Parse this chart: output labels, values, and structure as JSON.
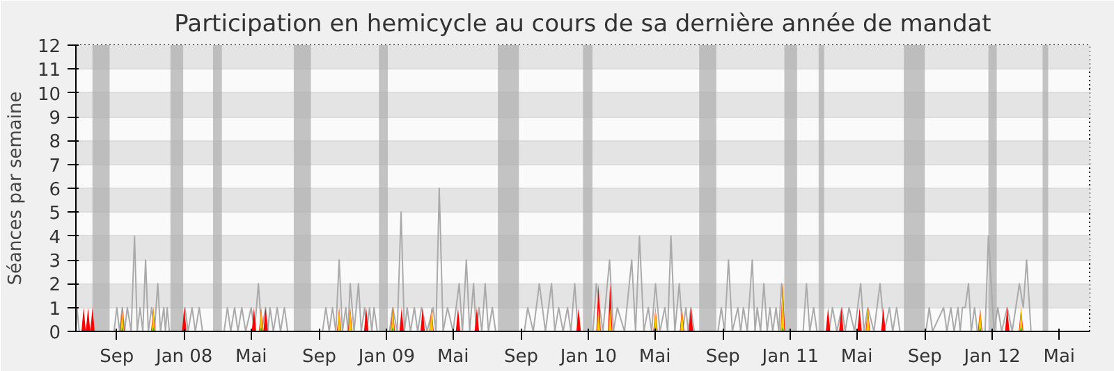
{
  "chart_data": {
    "type": "line",
    "title": "Participation en hemicycle au cours de sa dernière année de mandat",
    "ylabel": "Séances par semaine",
    "xlim": [
      "2007-06-19",
      "2012-06-25"
    ],
    "ylim": [
      0,
      12
    ],
    "yticks": [
      0,
      1,
      2,
      3,
      4,
      5,
      6,
      7,
      8,
      9,
      10,
      11,
      12
    ],
    "xticks": [
      {
        "value": "2007-09-01",
        "label": "Sep"
      },
      {
        "value": "2008-01-01",
        "label": "Jan 08"
      },
      {
        "value": "2008-05-01",
        "label": "Mai"
      },
      {
        "value": "2008-09-01",
        "label": "Sep"
      },
      {
        "value": "2009-01-01",
        "label": "Jan 09"
      },
      {
        "value": "2009-05-01",
        "label": "Mai"
      },
      {
        "value": "2009-09-01",
        "label": "Sep"
      },
      {
        "value": "2010-01-01",
        "label": "Jan 10"
      },
      {
        "value": "2010-05-01",
        "label": "Mai"
      },
      {
        "value": "2010-09-01",
        "label": "Sep"
      },
      {
        "value": "2011-01-01",
        "label": "Jan 11"
      },
      {
        "value": "2011-05-01",
        "label": "Mai"
      },
      {
        "value": "2011-09-01",
        "label": "Sep"
      },
      {
        "value": "2012-01-01",
        "label": "Jan 12"
      },
      {
        "value": "2012-05-01",
        "label": "Mai"
      }
    ],
    "grid": "y",
    "bands": [
      {
        "axis": "x",
        "from": "2007-07-19",
        "to": "2007-08-19",
        "color": "#b0b0b0"
      },
      {
        "axis": "x",
        "from": "2007-12-07",
        "to": "2007-12-30",
        "color": "#b0b0b0"
      },
      {
        "axis": "x",
        "from": "2008-02-22",
        "to": "2008-03-09",
        "color": "#b0b0b0"
      },
      {
        "axis": "x",
        "from": "2008-07-17",
        "to": "2008-08-17",
        "color": "#b0b0b0"
      },
      {
        "axis": "x",
        "from": "2008-12-18",
        "to": "2009-01-03",
        "color": "#b0b0b0"
      },
      {
        "axis": "x",
        "from": "2009-07-21",
        "to": "2009-08-28",
        "color": "#b0b0b0"
      },
      {
        "axis": "x",
        "from": "2009-12-22",
        "to": "2010-01-08",
        "color": "#b0b0b0"
      },
      {
        "axis": "x",
        "from": "2010-07-20",
        "to": "2010-08-20",
        "color": "#b0b0b0"
      },
      {
        "axis": "x",
        "from": "2010-12-21",
        "to": "2011-01-13",
        "color": "#b0b0b0"
      },
      {
        "axis": "x",
        "from": "2011-02-21",
        "to": "2011-03-03",
        "color": "#b0b0b0"
      },
      {
        "axis": "x",
        "from": "2011-07-25",
        "to": "2011-09-01",
        "color": "#b0b0b0"
      },
      {
        "axis": "x",
        "from": "2011-12-25",
        "to": "2012-01-09",
        "color": "#b0b0b0"
      },
      {
        "axis": "x",
        "from": "2012-04-01",
        "to": "2012-04-11",
        "color": "#b0b0b0"
      }
    ],
    "series": [
      {
        "color": "#aaaaaa",
        "x": [
          "2007-06-19",
          "2007-06-21",
          "2007-06-25",
          "2007-08-27",
          "2007-09-01",
          "2007-09-06",
          "2007-09-11",
          "2007-09-15",
          "2007-09-20",
          "2007-09-27",
          "2007-10-03",
          "2007-10-08",
          "2007-10-13",
          "2007-10-18",
          "2007-10-23",
          "2007-10-28",
          "2007-11-03",
          "2007-11-08",
          "2007-11-14",
          "2007-11-19",
          "2007-11-25",
          "2007-11-28",
          "2007-12-01",
          "2007-12-05",
          "2007-12-28",
          "2008-01-02",
          "2008-01-08",
          "2008-01-15",
          "2008-01-21",
          "2008-01-28",
          "2008-02-03",
          "2008-03-13",
          "2008-03-19",
          "2008-03-25",
          "2008-04-01",
          "2008-04-07",
          "2008-04-14",
          "2008-04-21",
          "2008-05-01",
          "2008-05-07",
          "2008-05-14",
          "2008-05-20",
          "2008-05-27",
          "2008-05-31",
          "2008-06-04",
          "2008-06-10",
          "2008-06-17",
          "2008-06-23",
          "2008-06-30",
          "2008-07-06",
          "2008-09-07",
          "2008-09-13",
          "2008-09-19",
          "2008-09-25",
          "2008-10-01",
          "2008-10-07",
          "2008-10-13",
          "2008-10-19",
          "2008-10-23",
          "2008-10-27",
          "2008-11-03",
          "2008-11-11",
          "2008-11-16",
          "2008-11-22",
          "2008-11-26",
          "2008-12-01",
          "2008-12-05",
          "2008-12-09",
          "2008-12-15",
          "2009-01-06",
          "2009-01-12",
          "2009-01-20",
          "2009-01-27",
          "2009-02-02",
          "2009-02-07",
          "2009-02-13",
          "2009-02-20",
          "2009-02-26",
          "2009-03-05",
          "2009-03-15",
          "2009-03-26",
          "2009-03-31",
          "2009-04-06",
          "2009-04-13",
          "2009-04-21",
          "2009-05-01",
          "2009-05-12",
          "2009-05-18",
          "2009-05-25",
          "2009-05-31",
          "2009-06-07",
          "2009-06-12",
          "2009-06-17",
          "2009-06-22",
          "2009-06-28",
          "2009-07-04",
          "2009-07-11",
          "2009-07-17",
          "2009-09-07",
          "2009-09-13",
          "2009-09-23",
          "2009-10-04",
          "2009-10-15",
          "2009-10-26",
          "2009-11-01",
          "2009-11-08",
          "2009-11-16",
          "2009-11-24",
          "2009-11-30",
          "2009-12-07",
          "2009-12-13",
          "2010-01-09",
          "2010-01-15",
          "2010-01-27",
          "2010-02-08",
          "2010-02-15",
          "2010-02-22",
          "2010-03-07",
          "2010-03-20",
          "2010-03-27",
          "2010-04-03",
          "2010-04-11",
          "2010-04-19",
          "2010-04-25",
          "2010-05-02",
          "2010-05-10",
          "2010-05-19",
          "2010-05-24",
          "2010-05-30",
          "2010-06-06",
          "2010-06-14",
          "2010-06-20",
          "2010-06-26",
          "2010-06-30",
          "2010-07-05",
          "2010-07-11",
          "2010-08-23",
          "2010-08-29",
          "2010-09-04",
          "2010-09-11",
          "2010-09-18",
          "2010-09-28",
          "2010-10-03",
          "2010-10-08",
          "2010-10-15",
          "2010-10-24",
          "2010-10-29",
          "2010-11-02",
          "2010-11-08",
          "2010-11-14",
          "2010-11-20",
          "2010-11-25",
          "2010-11-30",
          "2010-12-06",
          "2010-12-11",
          "2010-12-16",
          "2010-12-22",
          "2011-01-24",
          "2011-01-30",
          "2011-02-05",
          "2011-02-12",
          "2011-02-18",
          "2011-03-12",
          "2011-03-18",
          "2011-03-26",
          "2011-04-04",
          "2011-04-10",
          "2011-04-17",
          "2011-04-27",
          "2011-05-08",
          "2011-05-14",
          "2011-05-21",
          "2011-06-01",
          "2011-06-12",
          "2011-06-20",
          "2011-06-29",
          "2011-07-05",
          "2011-07-12",
          "2011-07-18",
          "2011-09-03",
          "2011-09-09",
          "2011-09-15",
          "2011-10-05",
          "2011-10-11",
          "2011-10-18",
          "2011-10-24",
          "2011-10-31",
          "2011-11-04",
          "2011-11-08",
          "2011-11-13",
          "2011-11-19",
          "2011-11-24",
          "2011-11-30",
          "2011-12-05",
          "2011-12-19",
          "2011-12-25",
          "2012-01-04",
          "2012-01-11",
          "2012-01-18",
          "2012-01-28",
          "2012-02-06",
          "2012-02-19",
          "2012-02-26",
          "2012-03-03",
          "2012-03-11",
          "2012-06-25"
        ],
        "values": [
          0,
          1,
          0,
          0,
          1,
          0,
          1,
          0,
          1,
          0,
          4,
          0,
          1,
          0,
          3,
          0,
          1,
          0,
          2,
          0,
          1,
          0,
          1,
          0,
          0,
          1,
          0,
          1,
          0,
          1,
          0,
          0,
          1,
          0,
          1,
          0,
          1,
          0,
          1,
          0,
          2,
          0,
          1,
          0,
          1,
          0,
          1,
          0,
          1,
          0,
          0,
          1,
          0,
          1,
          0,
          3,
          0,
          1,
          0,
          2,
          0,
          2,
          0,
          1,
          0,
          1,
          0,
          1,
          0,
          0,
          1,
          0,
          5,
          0,
          1,
          0,
          1,
          0,
          1,
          0,
          1,
          0,
          6,
          0,
          1,
          0,
          2,
          0,
          3,
          0,
          2,
          0,
          1,
          0,
          2,
          0,
          1,
          0,
          0,
          1,
          0,
          2,
          0,
          2,
          0,
          1,
          0,
          1,
          0,
          2,
          0,
          0,
          2,
          0,
          3,
          0,
          1,
          0,
          3,
          0,
          4,
          0,
          1,
          0,
          2,
          0,
          1,
          0,
          4,
          0,
          2,
          0,
          1,
          0,
          1,
          0,
          0,
          1,
          0,
          3,
          0,
          1,
          0,
          1,
          0,
          3,
          0,
          1,
          0,
          2,
          0,
          1,
          0,
          1,
          0,
          2,
          0,
          0,
          2,
          0,
          1,
          0,
          0,
          1,
          0,
          1,
          0,
          1,
          0,
          2,
          0,
          1,
          0,
          2,
          0,
          1,
          0,
          1,
          0,
          0,
          1,
          0,
          1,
          0,
          1,
          0,
          1,
          0,
          1,
          1,
          2,
          0,
          1,
          0,
          0,
          4,
          0,
          1,
          0,
          1,
          0,
          2,
          1,
          3,
          0,
          0
        ]
      },
      {
        "type": "area",
        "color": "#ff0000",
        "x": [
          "2007-06-29",
          "2007-07-03",
          "2007-07-07",
          "2007-07-11",
          "2007-07-15",
          "2007-07-19",
          "2007-07-23",
          "2007-09-07",
          "2007-09-11",
          "2007-09-15",
          "2007-11-02",
          "2007-11-06",
          "2007-11-10",
          "2007-12-28",
          "2008-01-01",
          "2008-01-05",
          "2008-05-02",
          "2008-05-06",
          "2008-05-10",
          "2008-05-15",
          "2008-05-19",
          "2008-05-23",
          "2008-05-27",
          "2008-05-31",
          "2008-10-03",
          "2008-10-07",
          "2008-10-11",
          "2008-10-23",
          "2008-10-27",
          "2008-10-31",
          "2008-11-21",
          "2008-11-25",
          "2008-11-29",
          "2009-01-08",
          "2009-01-12",
          "2009-01-16",
          "2009-01-24",
          "2009-01-28",
          "2009-02-01",
          "2009-03-03",
          "2009-03-07",
          "2009-03-11",
          "2009-03-19",
          "2009-03-23",
          "2009-03-27",
          "2009-05-06",
          "2009-05-10",
          "2009-05-14",
          "2009-06-09",
          "2009-06-13",
          "2009-06-17",
          "2009-12-10",
          "2009-12-14",
          "2009-12-18",
          "2010-01-15",
          "2010-01-19",
          "2010-01-23",
          "2010-02-05",
          "2010-02-09",
          "2010-02-13",
          "2010-04-28",
          "2010-05-02",
          "2010-05-06",
          "2010-06-15",
          "2010-06-19",
          "2010-06-23",
          "2010-07-01",
          "2010-07-05",
          "2010-07-09",
          "2010-12-14",
          "2010-12-18",
          "2010-12-22",
          "2011-03-06",
          "2011-03-10",
          "2011-03-14",
          "2011-03-30",
          "2011-04-03",
          "2011-04-07",
          "2011-05-02",
          "2011-05-06",
          "2011-05-10",
          "2011-05-17",
          "2011-05-21",
          "2011-05-25",
          "2011-06-14",
          "2011-06-18",
          "2011-06-22",
          "2011-12-06",
          "2011-12-10",
          "2011-12-14",
          "2012-01-24",
          "2012-01-28",
          "2012-02-01",
          "2012-02-18",
          "2012-02-22",
          "2012-02-26"
        ],
        "values": [
          0,
          1,
          0,
          1,
          0,
          1,
          0,
          0,
          1,
          0,
          0,
          1,
          0,
          0,
          1,
          0,
          0,
          1,
          0,
          0,
          1,
          0,
          1,
          0,
          0,
          1,
          0,
          0,
          1,
          0,
          0,
          1,
          0,
          0,
          1,
          0,
          0,
          1,
          0,
          0,
          1,
          0,
          0,
          1,
          0,
          0,
          1,
          0,
          0,
          1,
          0,
          0,
          1,
          0,
          0,
          2,
          0,
          0,
          2,
          0,
          0,
          1,
          0,
          0,
          1,
          0,
          0,
          1,
          0,
          0,
          2,
          0,
          0,
          1,
          0,
          0,
          1,
          0,
          0,
          1,
          0,
          0,
          1,
          0,
          0,
          1,
          0,
          0,
          1,
          0,
          0,
          1,
          0,
          0,
          1,
          0
        ]
      },
      {
        "type": "area",
        "color": "#ffcc00",
        "x": [
          "2007-09-08",
          "2007-09-11",
          "2007-09-14",
          "2007-11-03",
          "2007-11-06",
          "2007-11-09",
          "2008-05-16",
          "2008-05-19",
          "2008-05-22",
          "2008-10-04",
          "2008-10-07",
          "2008-10-10",
          "2008-10-24",
          "2008-10-27",
          "2008-10-30",
          "2009-01-09",
          "2009-01-12",
          "2009-01-15",
          "2009-03-20",
          "2009-03-23",
          "2009-03-26",
          "2010-01-16",
          "2010-01-19",
          "2010-01-22",
          "2010-02-06",
          "2010-02-09",
          "2010-02-12",
          "2010-04-29",
          "2010-05-02",
          "2010-05-05",
          "2010-06-16",
          "2010-06-19",
          "2010-06-22",
          "2010-12-15",
          "2010-12-18",
          "2010-12-21",
          "2011-05-18",
          "2011-05-21",
          "2011-05-24",
          "2011-12-07",
          "2011-12-10",
          "2011-12-13",
          "2012-02-19",
          "2012-02-22",
          "2012-02-25"
        ],
        "values": [
          0,
          1,
          0,
          0,
          1,
          0,
          0,
          1,
          0,
          0,
          1,
          0,
          0,
          1,
          0,
          0,
          1,
          0,
          0,
          1,
          0,
          0,
          1,
          0,
          0,
          1,
          0,
          0,
          1,
          0,
          0,
          1,
          0,
          0,
          2,
          0,
          0,
          1,
          0,
          0,
          1,
          0,
          0,
          1,
          0
        ]
      },
      {
        "type": "area",
        "color": "#00cc00",
        "x": [
          "2007-09-09",
          "2007-09-11",
          "2007-09-13",
          "2007-11-04",
          "2007-11-06",
          "2007-11-08",
          "2008-05-17",
          "2008-05-19",
          "2008-05-21",
          "2009-01-10",
          "2009-01-12",
          "2009-01-14",
          "2010-04-30",
          "2010-05-02",
          "2010-05-04",
          "2010-12-16",
          "2010-12-18",
          "2010-12-20",
          "2011-12-08",
          "2011-12-10",
          "2011-12-12",
          "2012-02-20",
          "2012-02-22",
          "2012-02-24"
        ],
        "values": [
          0,
          0.2,
          0,
          0,
          0.2,
          0,
          0,
          0.2,
          0,
          0,
          0.2,
          0,
          0,
          0.2,
          0,
          0,
          0.2,
          0,
          0,
          0.2,
          0,
          0,
          0.2,
          0
        ]
      }
    ]
  }
}
